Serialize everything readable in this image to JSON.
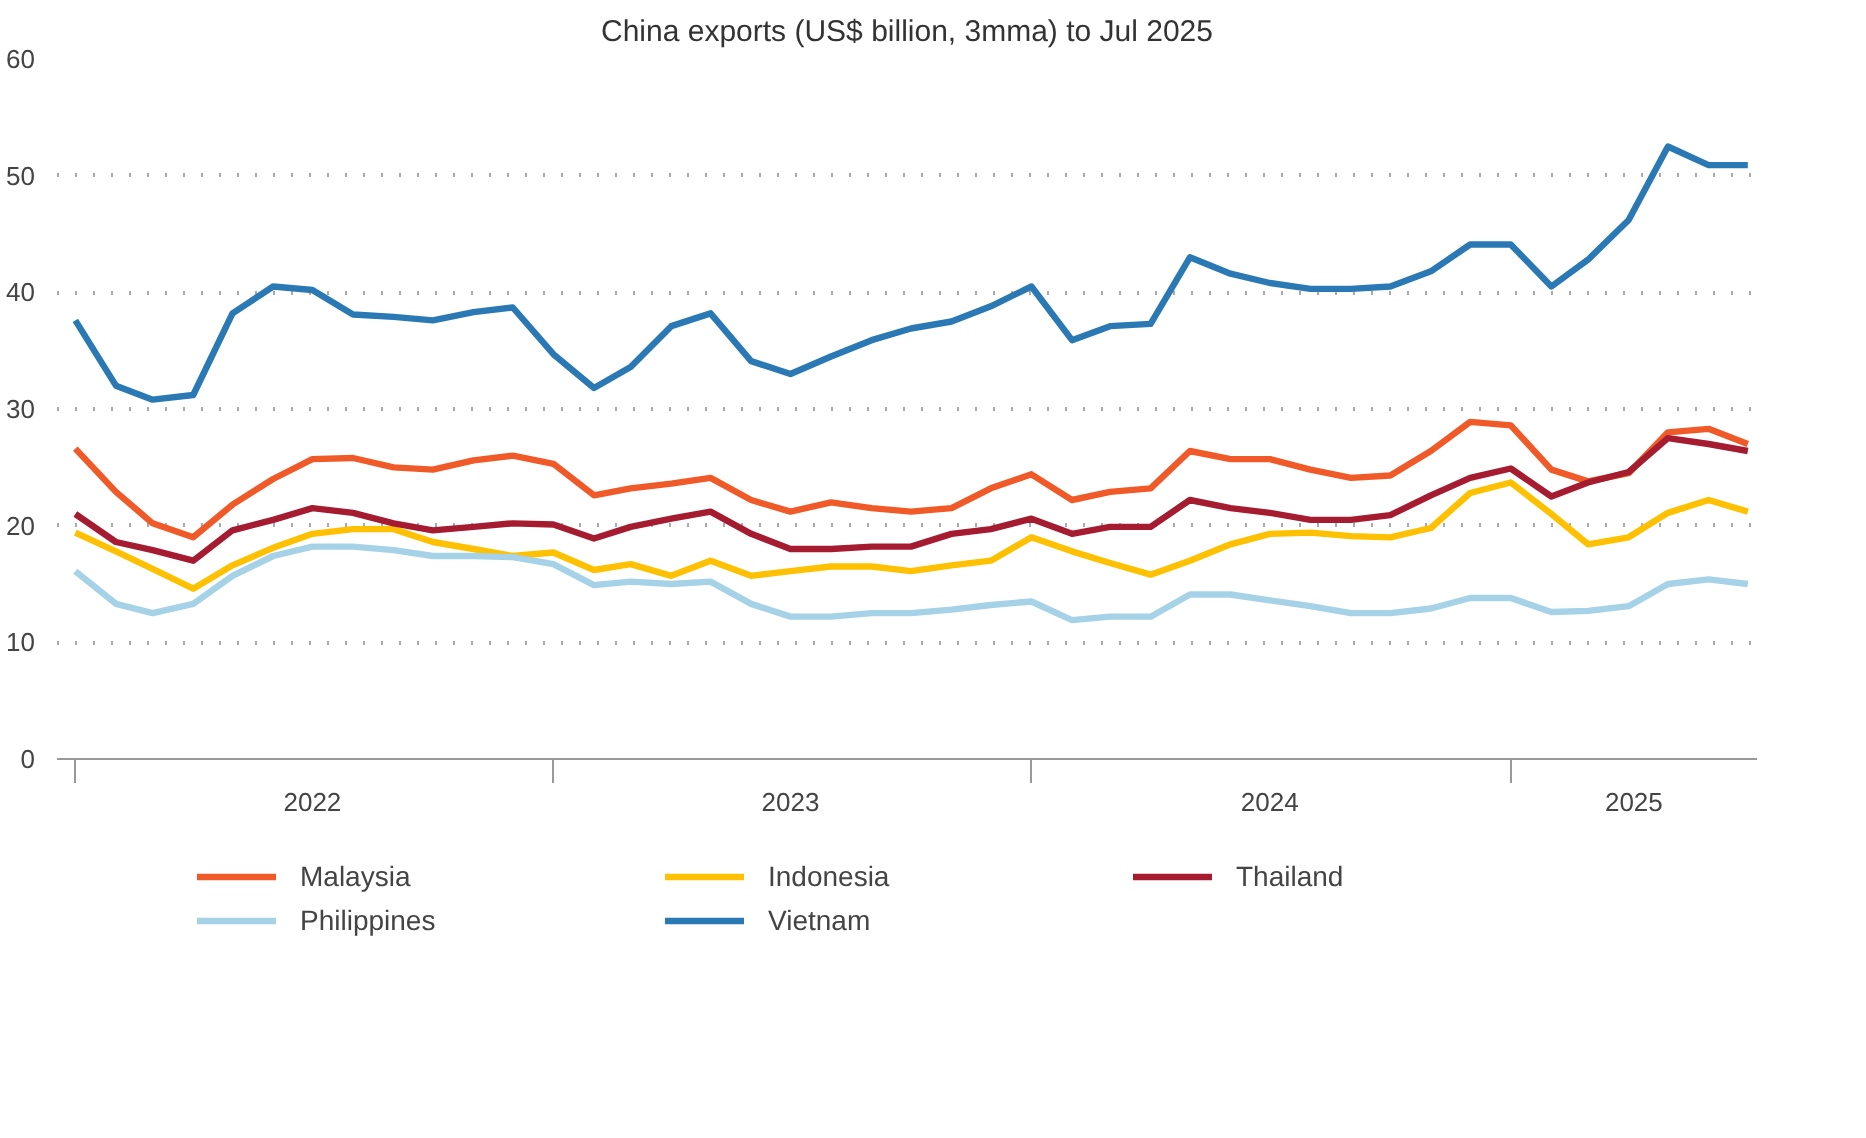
{
  "chart_data": {
    "type": "line",
    "title": "China exports (US$ billion, 3mma) to Jul 2025",
    "x": [
      "2022-01",
      "2022-02",
      "2022-03",
      "2022-04",
      "2022-05",
      "2022-06",
      "2022-07",
      "2022-08",
      "2022-09",
      "2022-10",
      "2022-11",
      "2022-12",
      "2023-01",
      "2023-02",
      "2023-03",
      "2023-04",
      "2023-05",
      "2023-06",
      "2023-07",
      "2023-08",
      "2023-09",
      "2023-10",
      "2023-11",
      "2023-12",
      "2024-01",
      "2024-02",
      "2024-03",
      "2024-04",
      "2024-05",
      "2024-06",
      "2024-07",
      "2024-08",
      "2024-09",
      "2024-10",
      "2024-11",
      "2024-12",
      "2025-01",
      "2025-02",
      "2025-03",
      "2025-04",
      "2025-05",
      "2025-06",
      "2025-07"
    ],
    "series": [
      {
        "name": "Malaysia",
        "color": "#f05a28",
        "values": [
          26.6,
          22.9,
          20.2,
          19.0,
          21.8,
          24.0,
          25.7,
          25.8,
          25.0,
          24.8,
          25.6,
          26.0,
          25.3,
          22.6,
          23.2,
          23.6,
          24.1,
          22.2,
          21.2,
          22.0,
          21.5,
          21.2,
          21.5,
          23.2,
          24.4,
          22.2,
          22.9,
          23.2,
          26.4,
          25.7,
          25.7,
          24.8,
          24.1,
          24.3,
          26.4,
          28.9,
          28.6,
          24.8,
          23.8,
          24.5,
          28.0,
          28.3,
          27.0
        ]
      },
      {
        "name": "Indonesia",
        "color": "#ffc000",
        "values": [
          19.4,
          17.8,
          16.3,
          14.6,
          16.6,
          18.1,
          19.3,
          19.7,
          19.7,
          18.6,
          18.0,
          17.4,
          17.7,
          16.2,
          16.7,
          15.7,
          17.0,
          15.7,
          16.1,
          16.5,
          16.5,
          16.1,
          16.6,
          17.0,
          19.0,
          17.8,
          16.8,
          15.8,
          17.0,
          18.4,
          19.3,
          19.4,
          19.1,
          19.0,
          19.8,
          22.8,
          23.7,
          21.0,
          18.4,
          19.0,
          21.1,
          22.2,
          21.2
        ]
      },
      {
        "name": "Thailand",
        "color": "#a51c30",
        "values": [
          21.0,
          18.6,
          17.9,
          17.0,
          19.6,
          20.5,
          21.5,
          21.1,
          20.2,
          19.6,
          19.9,
          20.2,
          20.1,
          18.9,
          19.9,
          20.6,
          21.2,
          19.3,
          18.0,
          18.0,
          18.2,
          18.2,
          19.3,
          19.7,
          20.6,
          19.3,
          19.9,
          19.9,
          22.2,
          21.5,
          21.1,
          20.5,
          20.5,
          20.9,
          22.6,
          24.1,
          24.9,
          22.5,
          23.7,
          24.6,
          27.5,
          27.0,
          26.4
        ]
      },
      {
        "name": "Philippines",
        "color": "#a6d2e8",
        "values": [
          16.1,
          13.3,
          12.5,
          13.3,
          15.7,
          17.4,
          18.2,
          18.2,
          17.9,
          17.4,
          17.4,
          17.3,
          16.7,
          14.9,
          15.2,
          15.0,
          15.2,
          13.3,
          12.2,
          12.2,
          12.5,
          12.5,
          12.8,
          13.2,
          13.5,
          11.9,
          12.2,
          12.2,
          14.1,
          14.1,
          13.6,
          13.1,
          12.5,
          12.5,
          12.9,
          13.8,
          13.8,
          12.6,
          12.7,
          13.1,
          15.0,
          15.4,
          15.0
        ]
      },
      {
        "name": "Vietnam",
        "color": "#2a79b5",
        "values": [
          37.6,
          32.0,
          30.8,
          31.2,
          38.2,
          40.5,
          40.2,
          38.1,
          37.9,
          37.6,
          38.3,
          38.7,
          34.7,
          31.8,
          33.6,
          37.1,
          38.2,
          34.1,
          33.0,
          34.5,
          35.9,
          36.9,
          37.5,
          38.8,
          40.5,
          35.9,
          37.1,
          37.3,
          43.0,
          41.6,
          40.8,
          40.3,
          40.3,
          40.5,
          41.8,
          44.1,
          44.1,
          40.5,
          42.8,
          46.2,
          52.5,
          50.9,
          50.9
        ]
      }
    ],
    "xlim": [
      "2021-12-18",
      "2025-07-08"
    ],
    "xticks": [
      {
        "value": "2022-01-01",
        "label": null
      },
      {
        "value": "2022-07-01",
        "label": "2022"
      },
      {
        "value": "2023-01-01",
        "label": null
      },
      {
        "value": "2023-07-01",
        "label": "2023"
      },
      {
        "value": "2024-01-01",
        "label": null
      },
      {
        "value": "2024-07-01",
        "label": "2024"
      },
      {
        "value": "2025-01-01",
        "label": null
      },
      {
        "value": "2025-04-05",
        "label": "2025"
      }
    ],
    "ylim": [
      0,
      60
    ],
    "yticks": [
      0,
      10,
      20,
      30,
      40,
      50,
      60
    ],
    "grid": "y",
    "legend": "bottom",
    "marker": "none",
    "line_style": "solid"
  }
}
